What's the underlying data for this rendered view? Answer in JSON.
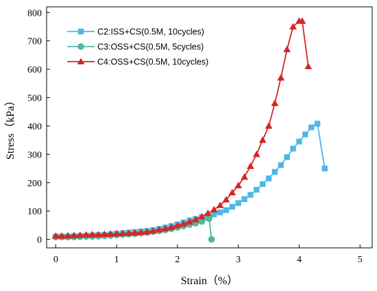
{
  "chart_data": {
    "type": "line",
    "title": "",
    "xlabel": "Strain（%）",
    "ylabel": "Stress（kPa）",
    "xlim": [
      -0.15,
      5.2
    ],
    "ylim": [
      -30,
      820
    ],
    "xticks": [
      0,
      1,
      2,
      3,
      4,
      5
    ],
    "yticks": [
      0,
      100,
      200,
      300,
      400,
      500,
      600,
      700,
      800
    ],
    "grid": false,
    "legend_position": "top-left",
    "series": [
      {
        "name": "C2:ISS+CS(0.5M, 10cycles)",
        "color": "#4EB7E8",
        "marker": "square",
        "x": [
          0,
          0.1,
          0.2,
          0.3,
          0.4,
          0.5,
          0.6,
          0.7,
          0.8,
          0.9,
          1.0,
          1.1,
          1.2,
          1.3,
          1.4,
          1.5,
          1.6,
          1.7,
          1.8,
          1.9,
          2.0,
          2.1,
          2.2,
          2.3,
          2.4,
          2.5,
          2.6,
          2.7,
          2.8,
          2.9,
          3.0,
          3.1,
          3.2,
          3.3,
          3.4,
          3.5,
          3.6,
          3.7,
          3.8,
          3.9,
          4.0,
          4.1,
          4.2,
          4.3,
          4.42
        ],
        "y": [
          10,
          10,
          10,
          11,
          12,
          13,
          14,
          15,
          16,
          18,
          20,
          22,
          24,
          26,
          28,
          30,
          33,
          37,
          42,
          47,
          53,
          60,
          67,
          72,
          78,
          83,
          88,
          95,
          103,
          115,
          128,
          142,
          157,
          175,
          195,
          215,
          238,
          262,
          290,
          320,
          345,
          370,
          395,
          408,
          250
        ]
      },
      {
        "name": "C3:OSS+CS(0.5M, 5cycles)",
        "color": "#50B89C",
        "marker": "circle",
        "x": [
          0,
          0.1,
          0.2,
          0.3,
          0.4,
          0.5,
          0.6,
          0.7,
          0.8,
          0.9,
          1.0,
          1.1,
          1.2,
          1.3,
          1.4,
          1.5,
          1.6,
          1.7,
          1.8,
          1.9,
          2.0,
          2.1,
          2.2,
          2.3,
          2.4,
          2.52,
          2.56
        ],
        "y": [
          8,
          8,
          8,
          8,
          9,
          10,
          10,
          11,
          12,
          13,
          15,
          17,
          18,
          20,
          22,
          24,
          27,
          30,
          33,
          37,
          42,
          47,
          52,
          57,
          63,
          73,
          0
        ]
      },
      {
        "name": "C4:OSS+CS(0.5M, 10cycles)",
        "color": "#D62525",
        "marker": "triangle",
        "x": [
          0,
          0.1,
          0.2,
          0.3,
          0.4,
          0.5,
          0.6,
          0.7,
          0.8,
          0.9,
          1.0,
          1.1,
          1.2,
          1.3,
          1.4,
          1.5,
          1.6,
          1.7,
          1.8,
          1.9,
          2.0,
          2.1,
          2.2,
          2.3,
          2.4,
          2.5,
          2.6,
          2.7,
          2.8,
          2.9,
          3.0,
          3.1,
          3.2,
          3.3,
          3.4,
          3.5,
          3.6,
          3.7,
          3.8,
          3.9,
          4.0,
          4.05,
          4.15
        ],
        "y": [
          12,
          12,
          13,
          14,
          15,
          16,
          17,
          17,
          18,
          19,
          20,
          21,
          22,
          23,
          25,
          27,
          30,
          34,
          38,
          43,
          49,
          55,
          62,
          70,
          80,
          92,
          105,
          120,
          140,
          165,
          190,
          220,
          258,
          300,
          350,
          400,
          480,
          570,
          670,
          750,
          770,
          770,
          610
        ]
      }
    ]
  }
}
